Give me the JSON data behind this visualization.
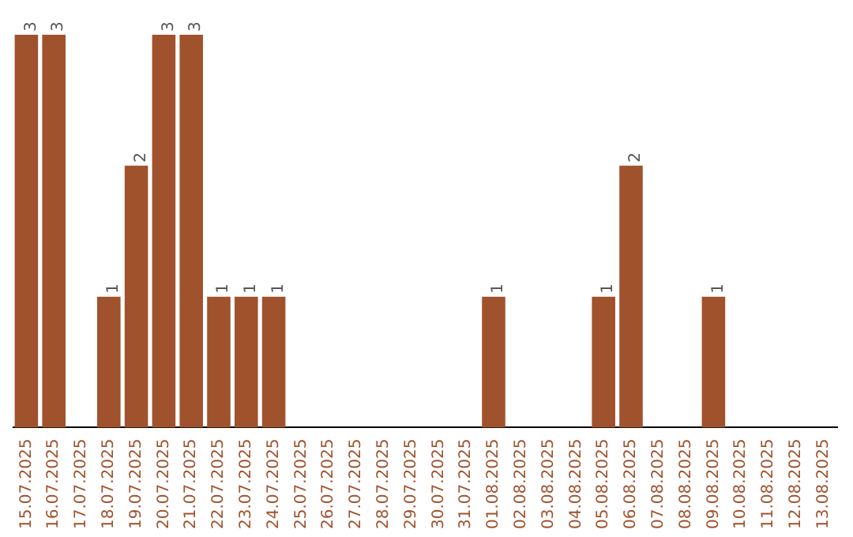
{
  "chart_data": {
    "type": "bar",
    "categories": [
      "15.07.2025",
      "16.07.2025",
      "17.07.2025",
      "18.07.2025",
      "19.07.2025",
      "20.07.2025",
      "21.07.2025",
      "22.07.2025",
      "23.07.2025",
      "24.07.2025",
      "25.07.2025",
      "26.07.2025",
      "27.07.2025",
      "28.07.2025",
      "29.07.2025",
      "30.07.2025",
      "31.07.2025",
      "01.08.2025",
      "02.08.2025",
      "03.08.2025",
      "04.08.2025",
      "05.08.2025",
      "06.08.2025",
      "07.08.2025",
      "08.08.2025",
      "09.08.2025",
      "10.08.2025",
      "11.08.2025",
      "12.08.2025",
      "13.08.2025"
    ],
    "values": [
      3,
      3,
      0,
      1,
      2,
      3,
      3,
      1,
      1,
      1,
      0,
      0,
      0,
      0,
      0,
      0,
      0,
      1,
      0,
      0,
      0,
      1,
      2,
      0,
      0,
      1,
      0,
      0,
      0,
      0
    ],
    "value_labels": [
      "3",
      "3",
      null,
      "1",
      "2",
      "3",
      "3",
      "1",
      "1",
      "1",
      null,
      null,
      null,
      null,
      null,
      null,
      null,
      "1",
      null,
      null,
      null,
      "1",
      "2",
      null,
      null,
      "1",
      null,
      null,
      null,
      null
    ],
    "color": "#a0522d",
    "grid": false,
    "legend": false,
    "tick_labels": "x"
  }
}
